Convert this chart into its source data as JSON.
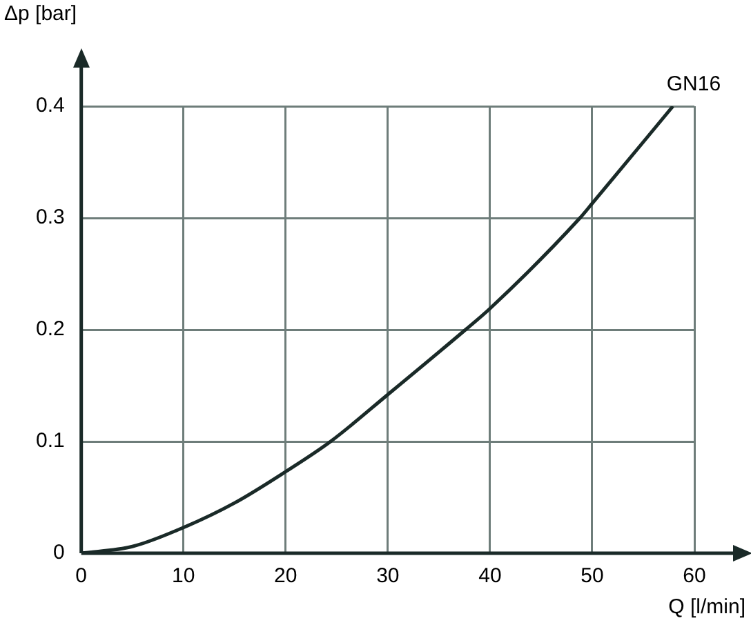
{
  "chart_data": {
    "type": "line",
    "xlabel": "Q [l/min]",
    "ylabel": "Δp [bar]",
    "x": [
      0,
      5,
      10,
      15,
      20,
      24.4,
      30,
      37.6,
      40,
      48.8,
      50,
      57.9
    ],
    "series": [
      {
        "name": "GN16",
        "color": "#1a2a28",
        "values": [
          0,
          0.006,
          0.023,
          0.045,
          0.073,
          0.1,
          0.142,
          0.2,
          0.219,
          0.3,
          0.313,
          0.4
        ]
      }
    ],
    "xlim": [
      0,
      60
    ],
    "xticks": [
      0,
      10,
      20,
      30,
      40,
      50,
      60
    ],
    "ylim": [
      0,
      0.4
    ],
    "yticks": [
      0,
      0.1,
      0.2,
      0.3,
      0.4
    ],
    "grid": true,
    "legend": false,
    "marker": "none",
    "line_style": "solid"
  }
}
